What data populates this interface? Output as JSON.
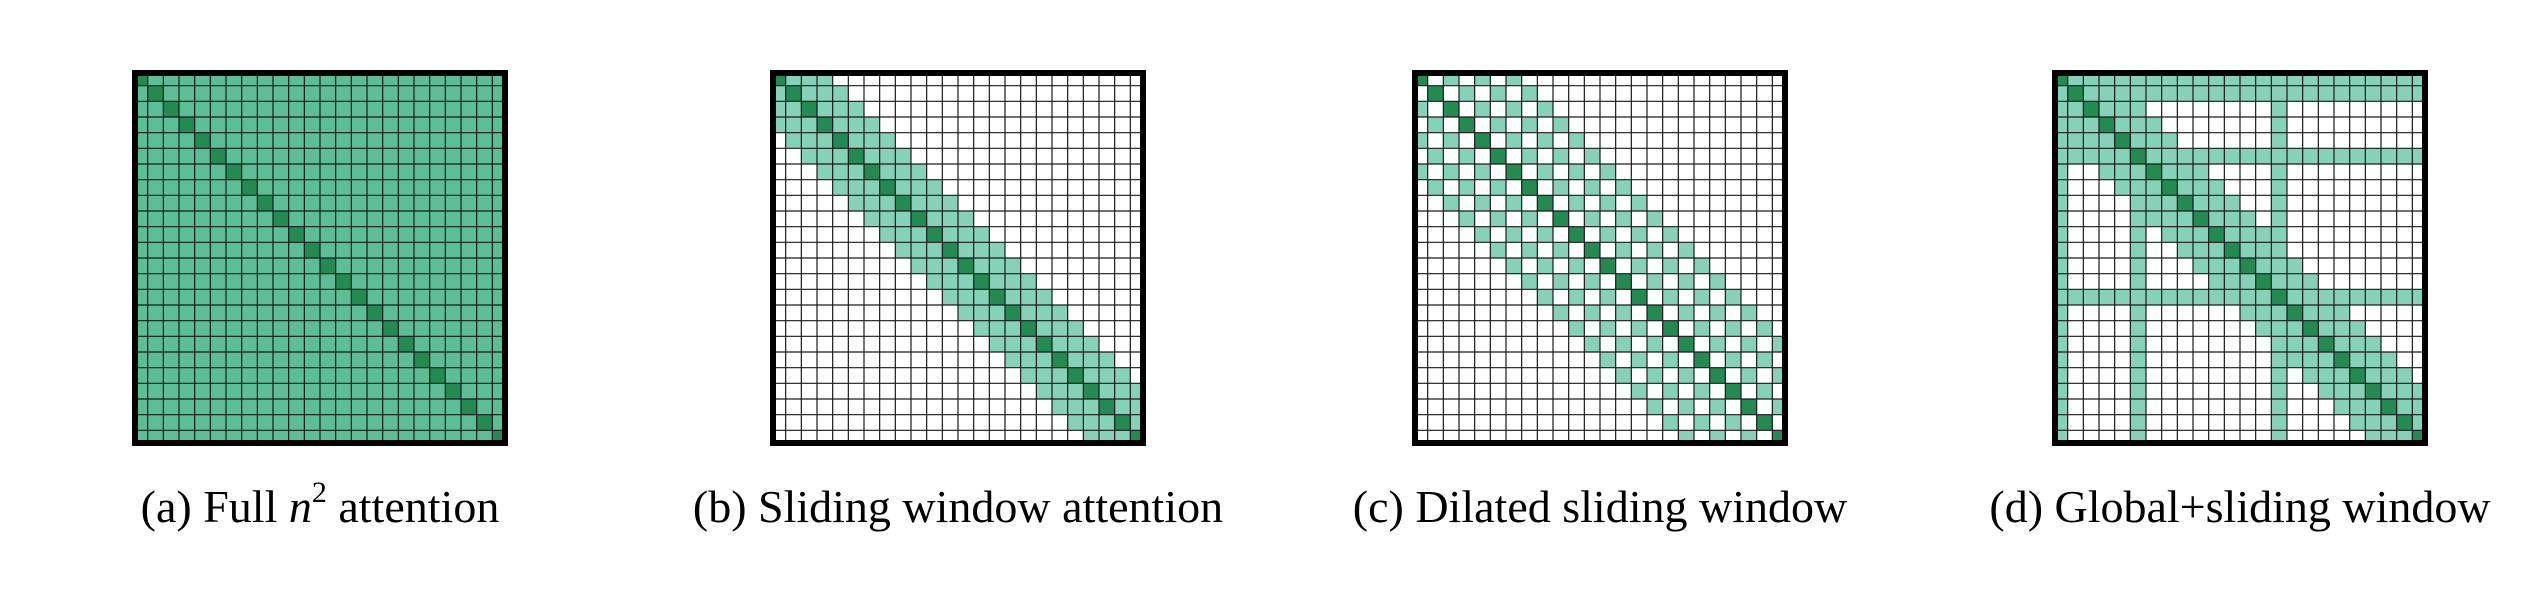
{
  "grid_size": 24,
  "colors": {
    "diagonal": "#238a52",
    "attend": "#86d2b8",
    "full": "#5cbe96",
    "empty": "#ffffff",
    "line": "#1a1a1a",
    "border": "#000000"
  },
  "panels": [
    {
      "id": "a",
      "pattern": "full",
      "caption_prefix": "(a) Full ",
      "caption_math": "n",
      "caption_sup": "2",
      "caption_suffix": " attention"
    },
    {
      "id": "b",
      "pattern": "sliding",
      "window": 3,
      "caption": "(b) Sliding window attention"
    },
    {
      "id": "c",
      "pattern": "dilated",
      "window": 6,
      "dilation": 2,
      "caption": "(c) Dilated sliding window"
    },
    {
      "id": "d",
      "pattern": "global_sliding",
      "window": 3,
      "global_rows": [
        0,
        1,
        5,
        14
      ],
      "global_cols": [
        0,
        5,
        14
      ],
      "caption": "(d) Global+sliding window"
    }
  ]
}
